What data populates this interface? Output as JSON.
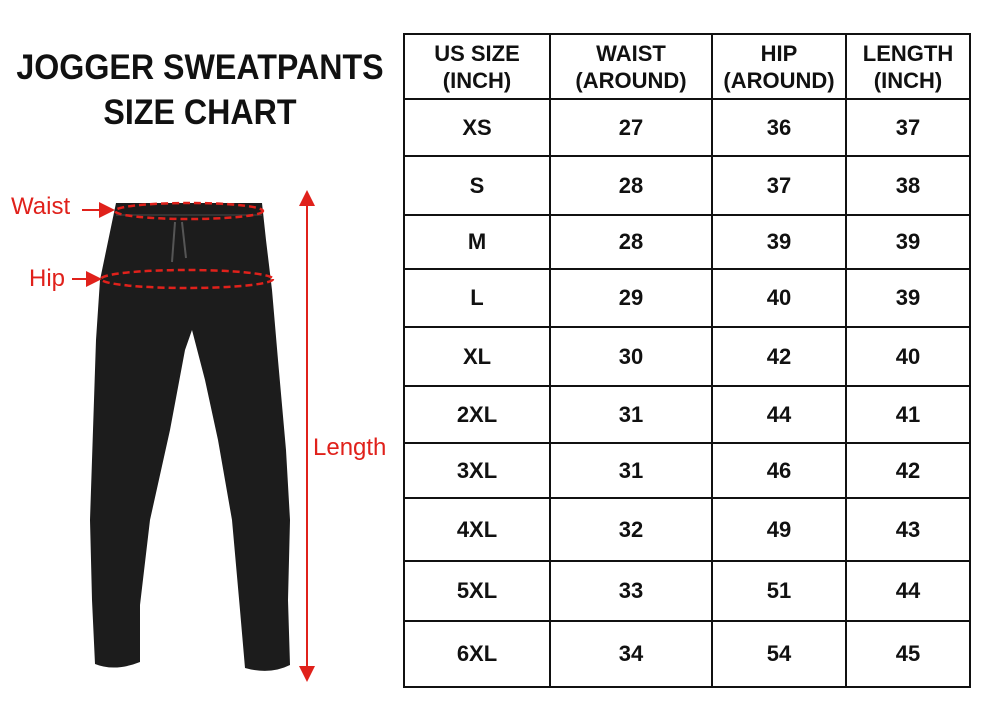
{
  "title_line1": "JOGGER SWEATPANTS",
  "title_line2": "SIZE CHART",
  "labels": {
    "waist": "Waist",
    "hip": "Hip",
    "length": "Length"
  },
  "colors": {
    "annotation": "#e0211b",
    "pants": "#1c1c1c"
  },
  "table": {
    "headers": [
      {
        "l1": "US SIZE",
        "l2": "(INCH)"
      },
      {
        "l1": "WAIST",
        "l2": "(AROUND)"
      },
      {
        "l1": "HIP",
        "l2": "(AROUND)"
      },
      {
        "l1": "LENGTH",
        "l2": "(INCH)"
      }
    ],
    "rows": [
      [
        "XS",
        "27",
        "36",
        "37"
      ],
      [
        "S",
        "28",
        "37",
        "38"
      ],
      [
        "M",
        "28",
        "39",
        "39"
      ],
      [
        "L",
        "29",
        "40",
        "39"
      ],
      [
        "XL",
        "30",
        "42",
        "40"
      ],
      [
        "2XL",
        "31",
        "44",
        "41"
      ],
      [
        "3XL",
        "31",
        "46",
        "42"
      ],
      [
        "4XL",
        "32",
        "49",
        "43"
      ],
      [
        "5XL",
        "33",
        "51",
        "44"
      ],
      [
        "6XL",
        "34",
        "54",
        "45"
      ]
    ]
  }
}
